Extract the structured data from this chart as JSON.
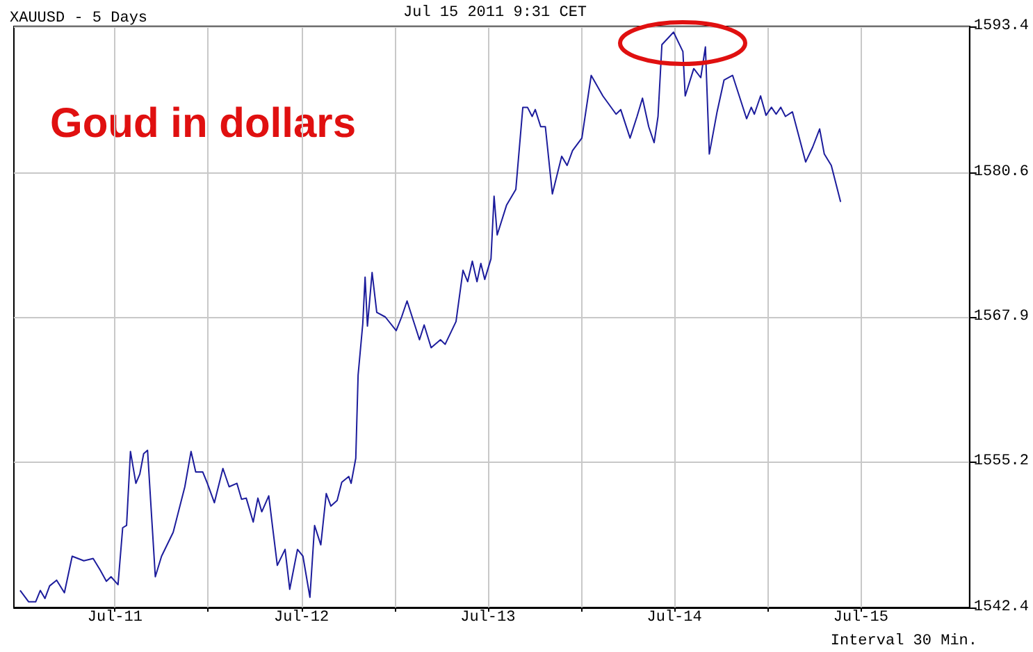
{
  "chart_data": {
    "type": "line",
    "title": "XAUUSD - 5 Days",
    "annotations": [
      "Jul 15 2011 9:31 CET",
      "Goud in dollars",
      "Interval 30 Min."
    ],
    "x": [
      "2011-07-10T23:48",
      "2011-07-11T00:54",
      "2011-07-11T01:48",
      "2011-07-11T02:24",
      "2011-07-11T03:00",
      "2011-07-11T03:36",
      "2011-07-11T04:30",
      "2011-07-11T05:30",
      "2011-07-11T06:30",
      "2011-07-11T08:00",
      "2011-07-11T09:12",
      "2011-07-11T10:06",
      "2011-07-11T10:54",
      "2011-07-11T11:30",
      "2011-07-11T12:24",
      "2011-07-11T13:00",
      "2011-07-11T13:30",
      "2011-07-11T14:00",
      "2011-07-11T14:42",
      "2011-07-11T15:12",
      "2011-07-11T15:42",
      "2011-07-11T16:12",
      "2011-07-11T17:12",
      "2011-07-11T18:00",
      "2011-07-11T19:30",
      "2011-07-11T21:00",
      "2011-07-11T21:48",
      "2011-07-11T22:24",
      "2011-07-11T23:18",
      "2011-07-11T23:54",
      "2011-07-12T00:48",
      "2011-07-12T01:54",
      "2011-07-12T02:42",
      "2011-07-12T03:42",
      "2011-07-12T04:18",
      "2011-07-12T04:54",
      "2011-07-12T05:48",
      "2011-07-12T06:24",
      "2011-07-12T06:54",
      "2011-07-12T07:48",
      "2011-07-12T08:54",
      "2011-07-12T09:54",
      "2011-07-12T10:30",
      "2011-07-12T11:30",
      "2011-07-12T12:12",
      "2011-07-12T13:06",
      "2011-07-12T13:42",
      "2011-07-12T14:30",
      "2011-07-12T15:12",
      "2011-07-12T15:48",
      "2011-07-12T16:36",
      "2011-07-12T17:12",
      "2011-07-12T18:06",
      "2011-07-12T18:24",
      "2011-07-12T19:00",
      "2011-07-12T19:18",
      "2011-07-12T19:54",
      "2011-07-12T20:12",
      "2011-07-12T20:30",
      "2011-07-12T21:06",
      "2011-07-12T21:42",
      "2011-07-12T22:48",
      "2011-07-13T00:12",
      "2011-07-13T00:54",
      "2011-07-13T01:36",
      "2011-07-13T03:12",
      "2011-07-13T03:48",
      "2011-07-13T04:42",
      "2011-07-13T05:54",
      "2011-07-13T06:30",
      "2011-07-13T07:54",
      "2011-07-13T08:48",
      "2011-07-13T09:24",
      "2011-07-13T10:00",
      "2011-07-13T10:36",
      "2011-07-13T11:06",
      "2011-07-13T11:36",
      "2011-07-13T12:24",
      "2011-07-13T12:48",
      "2011-07-13T13:12",
      "2011-07-13T14:24",
      "2011-07-13T15:36",
      "2011-07-13T16:30",
      "2011-07-13T17:06",
      "2011-07-13T17:42",
      "2011-07-13T18:06",
      "2011-07-13T18:48",
      "2011-07-13T19:24",
      "2011-07-13T20:18",
      "2011-07-13T21:30",
      "2011-07-13T22:12",
      "2011-07-13T22:54",
      "2011-07-14T00:06",
      "2011-07-14T01:18",
      "2011-07-14T02:48",
      "2011-07-14T04:30",
      "2011-07-14T05:06",
      "2011-07-14T06:18",
      "2011-07-14T07:12",
      "2011-07-14T07:54",
      "2011-07-14T08:42",
      "2011-07-14T09:24",
      "2011-07-14T09:54",
      "2011-07-14T10:24",
      "2011-07-14T11:54",
      "2011-07-14T13:06",
      "2011-07-14T13:24",
      "2011-07-14T14:30",
      "2011-07-14T15:24",
      "2011-07-14T16:00",
      "2011-07-14T16:30",
      "2011-07-14T17:30",
      "2011-07-14T18:24",
      "2011-07-14T19:30",
      "2011-07-14T21:18",
      "2011-07-14T21:54",
      "2011-07-14T22:18",
      "2011-07-14T23:06",
      "2011-07-14T23:48",
      "2011-07-15T00:30",
      "2011-07-15T01:06",
      "2011-07-15T01:42",
      "2011-07-15T02:18",
      "2011-07-15T03:12",
      "2011-07-15T04:54",
      "2011-07-15T05:48",
      "2011-07-15T06:42",
      "2011-07-15T07:18",
      "2011-07-15T08:12",
      "2011-07-15T09:24"
    ],
    "series": [
      {
        "color": "#1c1c9c",
        "values": [
          1543.9,
          1542.9,
          1542.9,
          1543.9,
          1543.2,
          1544.3,
          1544.8,
          1543.7,
          1546.9,
          1546.5,
          1546.7,
          1545.7,
          1544.7,
          1545.1,
          1544.4,
          1549.4,
          1549.6,
          1556.1,
          1553.3,
          1554.1,
          1555.9,
          1556.2,
          1545.1,
          1546.9,
          1549.0,
          1553.0,
          1556.1,
          1554.3,
          1554.3,
          1553.3,
          1551.6,
          1554.6,
          1553.0,
          1553.3,
          1551.9,
          1552.0,
          1549.9,
          1552.0,
          1550.8,
          1552.2,
          1546.1,
          1547.5,
          1544.0,
          1547.5,
          1546.9,
          1543.3,
          1549.6,
          1547.9,
          1552.4,
          1551.3,
          1551.8,
          1553.4,
          1553.9,
          1553.3,
          1555.5,
          1562.8,
          1567.3,
          1571.4,
          1567.1,
          1571.8,
          1568.3,
          1567.9,
          1566.7,
          1567.9,
          1569.3,
          1565.9,
          1567.2,
          1565.2,
          1565.9,
          1565.5,
          1567.5,
          1572.0,
          1571.0,
          1572.8,
          1571.0,
          1572.6,
          1571.2,
          1573.0,
          1578.5,
          1575.1,
          1577.7,
          1579.1,
          1586.3,
          1586.3,
          1585.5,
          1586.1,
          1584.6,
          1584.6,
          1578.7,
          1582.0,
          1581.2,
          1582.5,
          1583.6,
          1589.1,
          1587.3,
          1585.7,
          1586.1,
          1583.6,
          1585.5,
          1587.1,
          1584.6,
          1583.2,
          1585.5,
          1591.8,
          1592.9,
          1591.2,
          1587.3,
          1589.7,
          1588.9,
          1591.6,
          1582.2,
          1585.9,
          1588.7,
          1589.1,
          1585.3,
          1586.3,
          1585.7,
          1587.3,
          1585.6,
          1586.3,
          1585.7,
          1586.3,
          1585.5,
          1585.9,
          1581.5,
          1582.8,
          1584.4,
          1582.2,
          1581.2,
          1578.0
        ]
      }
    ],
    "xlim": [
      "2011-07-10T23:00",
      "2011-07-16T02:00"
    ],
    "xticks": [
      {
        "value": "2011-07-11T12:00",
        "label": "Jul-11"
      },
      {
        "value": "2011-07-12T00:00",
        "label": null
      },
      {
        "value": "2011-07-12T12:00",
        "label": "Jul-12"
      },
      {
        "value": "2011-07-13T00:00",
        "label": null
      },
      {
        "value": "2011-07-13T12:00",
        "label": "Jul-13"
      },
      {
        "value": "2011-07-14T00:00",
        "label": null
      },
      {
        "value": "2011-07-14T12:00",
        "label": "Jul-14"
      },
      {
        "value": "2011-07-15T00:00",
        "label": null
      },
      {
        "value": "2011-07-15T12:00",
        "label": "Jul-15"
      }
    ],
    "ylim": [
      1542.4,
      1593.4
    ],
    "yticks": [
      1542.4,
      1555.2,
      1567.9,
      1580.6,
      1593.4
    ],
    "grid": true,
    "marker": "none",
    "line_style": "solid"
  }
}
